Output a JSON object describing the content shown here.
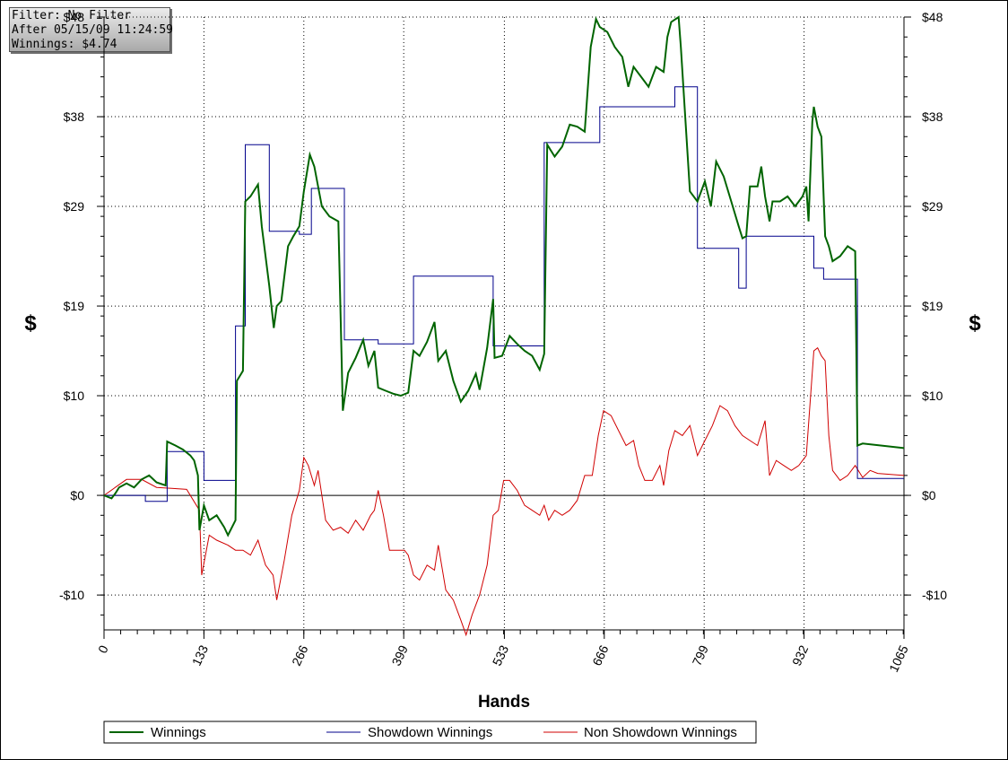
{
  "info": {
    "filter": "Filter: No Filter",
    "after": "After 05/15/09 11:24:59",
    "winnings": "Winnings: $4.74"
  },
  "chart_data": {
    "type": "line",
    "xlabel": "Hands",
    "ylabel": "$",
    "xlim": [
      0,
      1065
    ],
    "ylim": [
      -13.5,
      48
    ],
    "x_ticks": [
      0,
      133,
      266,
      399,
      533,
      666,
      799,
      932,
      1065
    ],
    "y_ticks": [
      {
        "value": -10,
        "label": "-$10"
      },
      {
        "value": 0,
        "label": "$0"
      },
      {
        "value": 10,
        "label": "$10"
      },
      {
        "value": 19,
        "label": "$19"
      },
      {
        "value": 29,
        "label": "$29"
      },
      {
        "value": 38,
        "label": "$38"
      },
      {
        "value": 48,
        "label": "$48"
      }
    ],
    "grid": true,
    "legend_position": "bottom",
    "series": [
      {
        "name": "Winnings",
        "color": "#006400",
        "points": [
          [
            0,
            0
          ],
          [
            10,
            -0.3
          ],
          [
            15,
            0.2
          ],
          [
            20,
            0.8
          ],
          [
            30,
            1.2
          ],
          [
            40,
            0.8
          ],
          [
            50,
            1.6
          ],
          [
            60,
            2.0
          ],
          [
            70,
            1.3
          ],
          [
            82,
            1.0
          ],
          [
            84,
            5.4
          ],
          [
            95,
            5.0
          ],
          [
            105,
            4.6
          ],
          [
            115,
            4.0
          ],
          [
            120,
            3.5
          ],
          [
            125,
            2.0
          ],
          [
            127,
            -3.5
          ],
          [
            133,
            -1.0
          ],
          [
            140,
            -2.5
          ],
          [
            150,
            -2.0
          ],
          [
            160,
            -3.2
          ],
          [
            165,
            -4.0
          ],
          [
            175,
            -2.5
          ],
          [
            177,
            11.5
          ],
          [
            185,
            12.5
          ],
          [
            188,
            29.5
          ],
          [
            195,
            30.0
          ],
          [
            205,
            31.2
          ],
          [
            210,
            27.0
          ],
          [
            220,
            21.0
          ],
          [
            226,
            16.8
          ],
          [
            230,
            19.0
          ],
          [
            236,
            19.5
          ],
          [
            245,
            25.0
          ],
          [
            252,
            26.0
          ],
          [
            260,
            27.0
          ],
          [
            266,
            30.5
          ],
          [
            274,
            34.2
          ],
          [
            280,
            33.0
          ],
          [
            290,
            29.0
          ],
          [
            300,
            28.0
          ],
          [
            312,
            27.5
          ],
          [
            318,
            8.5
          ],
          [
            325,
            12.3
          ],
          [
            335,
            13.8
          ],
          [
            345,
            15.6
          ],
          [
            352,
            13.0
          ],
          [
            360,
            14.5
          ],
          [
            365,
            10.8
          ],
          [
            375,
            10.5
          ],
          [
            385,
            10.2
          ],
          [
            395,
            10.0
          ],
          [
            405,
            10.3
          ],
          [
            412,
            14.5
          ],
          [
            420,
            14.0
          ],
          [
            430,
            15.4
          ],
          [
            440,
            17.4
          ],
          [
            445,
            13.5
          ],
          [
            455,
            14.5
          ],
          [
            465,
            11.5
          ],
          [
            475,
            9.4
          ],
          [
            485,
            10.5
          ],
          [
            495,
            12.2
          ],
          [
            500,
            10.6
          ],
          [
            510,
            14.8
          ],
          [
            518,
            19.7
          ],
          [
            520,
            13.8
          ],
          [
            530,
            14.0
          ],
          [
            540,
            16.0
          ],
          [
            550,
            15.2
          ],
          [
            560,
            14.5
          ],
          [
            570,
            14.0
          ],
          [
            580,
            12.6
          ],
          [
            586,
            14.2
          ],
          [
            590,
            35.2
          ],
          [
            600,
            34.0
          ],
          [
            610,
            35.0
          ],
          [
            620,
            37.2
          ],
          [
            630,
            37.0
          ],
          [
            640,
            36.5
          ],
          [
            648,
            45.0
          ],
          [
            655,
            47.8
          ],
          [
            660,
            47.0
          ],
          [
            670,
            46.5
          ],
          [
            680,
            45.0
          ],
          [
            690,
            44.0
          ],
          [
            698,
            41.0
          ],
          [
            705,
            43.0
          ],
          [
            715,
            42.0
          ],
          [
            725,
            41.0
          ],
          [
            735,
            43.0
          ],
          [
            745,
            42.5
          ],
          [
            750,
            46.0
          ],
          [
            755,
            47.5
          ],
          [
            765,
            48.0
          ],
          [
            768,
            45.0
          ],
          [
            780,
            30.5
          ],
          [
            790,
            29.5
          ],
          [
            800,
            31.5
          ],
          [
            808,
            29.0
          ],
          [
            815,
            33.5
          ],
          [
            825,
            32.0
          ],
          [
            835,
            29.5
          ],
          [
            845,
            27.0
          ],
          [
            850,
            25.8
          ],
          [
            855,
            26.0
          ],
          [
            860,
            31.0
          ],
          [
            870,
            31.0
          ],
          [
            875,
            33.0
          ],
          [
            880,
            30.0
          ],
          [
            886,
            27.5
          ],
          [
            890,
            29.5
          ],
          [
            900,
            29.5
          ],
          [
            910,
            30.0
          ],
          [
            920,
            29.0
          ],
          [
            930,
            30.0
          ],
          [
            935,
            31.0
          ],
          [
            938,
            27.5
          ],
          [
            943,
            37.5
          ],
          [
            945,
            39.0
          ],
          [
            950,
            37.0
          ],
          [
            955,
            36.0
          ],
          [
            960,
            26.0
          ],
          [
            965,
            25.0
          ],
          [
            970,
            23.5
          ],
          [
            980,
            24.0
          ],
          [
            990,
            25.0
          ],
          [
            1000,
            24.5
          ],
          [
            1003,
            5.0
          ],
          [
            1010,
            5.2
          ],
          [
            1065,
            4.74
          ]
        ]
      },
      {
        "name": "Showdown Winnings",
        "color": "#00008b",
        "step": true,
        "points": [
          [
            0,
            0
          ],
          [
            55,
            0
          ],
          [
            55,
            -0.6
          ],
          [
            84,
            -0.6
          ],
          [
            84,
            4.4
          ],
          [
            133,
            4.4
          ],
          [
            133,
            1.5
          ],
          [
            175,
            1.5
          ],
          [
            175,
            17.0
          ],
          [
            188,
            17.0
          ],
          [
            188,
            35.2
          ],
          [
            220,
            35.2
          ],
          [
            220,
            26.5
          ],
          [
            260,
            26.5
          ],
          [
            260,
            26.2
          ],
          [
            276,
            26.2
          ],
          [
            276,
            30.8
          ],
          [
            320,
            30.8
          ],
          [
            320,
            15.6
          ],
          [
            365,
            15.6
          ],
          [
            365,
            15.2
          ],
          [
            412,
            15.2
          ],
          [
            412,
            22.0
          ],
          [
            518,
            22.0
          ],
          [
            518,
            15.0
          ],
          [
            586,
            15.0
          ],
          [
            586,
            35.4
          ],
          [
            660,
            35.4
          ],
          [
            660,
            39.0
          ],
          [
            760,
            39.0
          ],
          [
            760,
            41.0
          ],
          [
            790,
            41.0
          ],
          [
            790,
            24.8
          ],
          [
            845,
            24.8
          ],
          [
            845,
            20.8
          ],
          [
            855,
            20.8
          ],
          [
            855,
            26.0
          ],
          [
            945,
            26.0
          ],
          [
            945,
            22.8
          ],
          [
            958,
            22.8
          ],
          [
            958,
            21.7
          ],
          [
            1003,
            21.7
          ],
          [
            1003,
            1.7
          ],
          [
            1065,
            1.7
          ]
        ]
      },
      {
        "name": "Non Showdown Winnings",
        "color": "#d00000",
        "points": [
          [
            0,
            0
          ],
          [
            30,
            1.6
          ],
          [
            50,
            1.6
          ],
          [
            70,
            0.8
          ],
          [
            90,
            0.7
          ],
          [
            110,
            0.6
          ],
          [
            127,
            -1.5
          ],
          [
            130,
            -8.0
          ],
          [
            140,
            -4.0
          ],
          [
            150,
            -4.5
          ],
          [
            165,
            -5.0
          ],
          [
            175,
            -5.5
          ],
          [
            185,
            -5.5
          ],
          [
            195,
            -6.0
          ],
          [
            205,
            -4.5
          ],
          [
            215,
            -7.0
          ],
          [
            225,
            -8.0
          ],
          [
            230,
            -10.5
          ],
          [
            240,
            -6.5
          ],
          [
            250,
            -2.0
          ],
          [
            260,
            0.5
          ],
          [
            266,
            3.8
          ],
          [
            272,
            3.0
          ],
          [
            280,
            1.0
          ],
          [
            285,
            2.5
          ],
          [
            295,
            -2.5
          ],
          [
            305,
            -3.5
          ],
          [
            315,
            -3.2
          ],
          [
            325,
            -3.8
          ],
          [
            335,
            -2.5
          ],
          [
            345,
            -3.5
          ],
          [
            355,
            -2.0
          ],
          [
            360,
            -1.5
          ],
          [
            365,
            0.5
          ],
          [
            372,
            -2.0
          ],
          [
            380,
            -5.5
          ],
          [
            390,
            -5.5
          ],
          [
            400,
            -5.5
          ],
          [
            405,
            -6.0
          ],
          [
            412,
            -8.0
          ],
          [
            420,
            -8.5
          ],
          [
            430,
            -7.0
          ],
          [
            440,
            -7.5
          ],
          [
            445,
            -5.0
          ],
          [
            455,
            -9.5
          ],
          [
            465,
            -10.5
          ],
          [
            475,
            -12.5
          ],
          [
            482,
            -14.0
          ],
          [
            490,
            -12.0
          ],
          [
            500,
            -10.0
          ],
          [
            510,
            -7.0
          ],
          [
            518,
            -2.0
          ],
          [
            525,
            -1.5
          ],
          [
            532,
            1.5
          ],
          [
            540,
            1.5
          ],
          [
            550,
            0.5
          ],
          [
            560,
            -1.0
          ],
          [
            570,
            -1.5
          ],
          [
            580,
            -2.0
          ],
          [
            586,
            -1.0
          ],
          [
            592,
            -2.5
          ],
          [
            600,
            -1.5
          ],
          [
            610,
            -2.0
          ],
          [
            620,
            -1.5
          ],
          [
            630,
            -0.5
          ],
          [
            640,
            2.0
          ],
          [
            650,
            2.0
          ],
          [
            658,
            6.0
          ],
          [
            665,
            8.5
          ],
          [
            675,
            8.0
          ],
          [
            685,
            6.5
          ],
          [
            695,
            5.0
          ],
          [
            705,
            5.5
          ],
          [
            712,
            3.0
          ],
          [
            720,
            1.5
          ],
          [
            730,
            1.5
          ],
          [
            740,
            3.0
          ],
          [
            745,
            1.0
          ],
          [
            752,
            4.5
          ],
          [
            760,
            6.5
          ],
          [
            770,
            6.0
          ],
          [
            780,
            7.0
          ],
          [
            790,
            4.0
          ],
          [
            800,
            5.5
          ],
          [
            810,
            7.0
          ],
          [
            820,
            9.0
          ],
          [
            830,
            8.5
          ],
          [
            840,
            7.0
          ],
          [
            850,
            6.0
          ],
          [
            860,
            5.5
          ],
          [
            870,
            5.0
          ],
          [
            880,
            7.5
          ],
          [
            886,
            2.0
          ],
          [
            895,
            3.5
          ],
          [
            905,
            3.0
          ],
          [
            915,
            2.5
          ],
          [
            925,
            3.0
          ],
          [
            935,
            4.0
          ],
          [
            945,
            14.5
          ],
          [
            950,
            14.8
          ],
          [
            955,
            14.0
          ],
          [
            960,
            13.5
          ],
          [
            965,
            6.0
          ],
          [
            970,
            2.5
          ],
          [
            980,
            1.5
          ],
          [
            990,
            2.0
          ],
          [
            1000,
            3.0
          ],
          [
            1010,
            1.8
          ],
          [
            1020,
            2.5
          ],
          [
            1030,
            2.2
          ],
          [
            1065,
            2.0
          ]
        ]
      }
    ]
  }
}
